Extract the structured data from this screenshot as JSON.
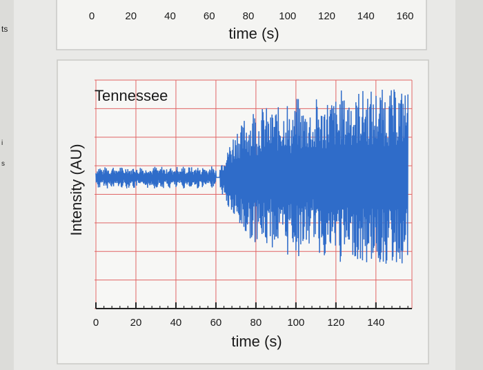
{
  "side_fragments": {
    "top": "ts",
    "mid_a": "i",
    "mid_b": "s"
  },
  "top_chart": {
    "ticks": [
      "0",
      "20",
      "40",
      "60",
      "80",
      "100",
      "120",
      "140",
      "160"
    ],
    "xlabel": "time (s)"
  },
  "chart_data": [
    {
      "type": "line",
      "title": "",
      "xlabel": "time (s)",
      "ylabel": "",
      "xlim": [
        0,
        165
      ],
      "ticks": [
        "0",
        "20",
        "40",
        "60",
        "80",
        "100",
        "120",
        "140",
        "160"
      ],
      "series": []
    },
    {
      "type": "line",
      "title": "Tennessee",
      "xlabel": "time (s)",
      "ylabel": "Intensity (AU)",
      "xlim": [
        0,
        158
      ],
      "ylim": [
        -1,
        1
      ],
      "ticks": [
        "0",
        "20",
        "40",
        "60",
        "80",
        "100",
        "120",
        "140"
      ],
      "grid": true,
      "grid_color": "#e06464",
      "line_color": "#2f6cc9",
      "series": [
        {
          "name": "",
          "x": [
            0,
            2,
            4,
            6,
            8,
            10,
            12,
            14,
            16,
            18,
            20,
            22,
            24,
            26,
            28,
            30,
            32,
            34,
            36,
            38,
            40,
            42,
            44,
            46,
            48,
            50,
            52,
            54,
            56,
            58,
            60,
            62,
            64,
            66,
            68,
            70,
            72,
            74,
            76,
            78,
            80,
            82,
            84,
            86,
            88,
            90,
            92,
            94,
            96,
            98,
            100,
            102,
            104,
            106,
            108,
            110,
            112,
            114,
            116,
            118,
            120,
            122,
            124,
            126,
            128,
            130,
            132,
            134,
            136,
            138,
            140,
            142,
            144,
            146,
            148,
            150,
            152,
            154,
            156
          ],
          "y": [
            0.0,
            0.1,
            -0.1,
            0.15,
            -0.05,
            0.1,
            -0.1,
            0.05,
            0.2,
            -0.15,
            0.1,
            -0.05,
            0.1,
            -0.1,
            0.05,
            0.05,
            -0.05,
            0.1,
            0.0,
            0.05,
            -0.05,
            0.05,
            0.0,
            0.1,
            -0.05,
            0.05,
            0.0,
            0.1,
            -0.1,
            0.1,
            0.0,
            0.2,
            -0.3,
            0.4,
            -0.5,
            0.6,
            -0.6,
            0.7,
            -0.7,
            0.8,
            -0.7,
            0.8,
            -0.8,
            0.7,
            -0.8,
            0.8,
            -0.8,
            0.9,
            -0.7,
            0.8,
            -0.9,
            0.8,
            -0.8,
            0.8,
            -0.7,
            0.9,
            -0.8,
            0.9,
            -0.9,
            0.9,
            -0.8,
            1.0,
            -0.9,
            1.0,
            -0.9,
            1.0,
            -1.0,
            1.0,
            -1.0,
            0.9,
            -1.0,
            1.0,
            -1.0,
            1.0,
            -1.0,
            1.0,
            -1.0,
            1.0,
            -0.9
          ]
        }
      ]
    }
  ]
}
